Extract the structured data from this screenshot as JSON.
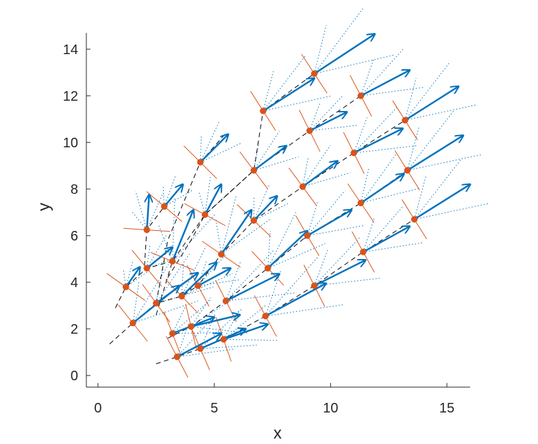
{
  "chart_data": {
    "type": "scatter",
    "title": "",
    "xlabel": "x",
    "ylabel": "y",
    "xlim": [
      -0.5,
      16
    ],
    "ylim": [
      -0.5,
      14.7
    ],
    "xticks": [
      0,
      5,
      10,
      15
    ],
    "yticks": [
      0,
      2,
      4,
      6,
      8,
      10,
      12,
      14
    ],
    "grid": false,
    "colors": {
      "points": "#d95319",
      "arrows": "#0072bd",
      "dotted": "#0072bd",
      "curves": "#000000",
      "crosses": "#d95319",
      "axis": "#262626"
    },
    "points": [
      {
        "x": 3.4,
        "y": 0.8,
        "u": 1.9,
        "v": 1.0
      },
      {
        "x": 4.4,
        "y": 1.15,
        "u": 1.95,
        "v": 0.85
      },
      {
        "x": 5.4,
        "y": 1.55,
        "u": 1.9,
        "v": 0.65
      },
      {
        "x": 3.2,
        "y": 1.8,
        "u": 1.8,
        "v": 0.7
      },
      {
        "x": 4.0,
        "y": 2.1,
        "u": 2.1,
        "v": 0.5
      },
      {
        "x": 1.5,
        "y": 2.25,
        "u": 2.0,
        "v": 1.6
      },
      {
        "x": 2.5,
        "y": 3.1,
        "u": 1.8,
        "v": 1.3
      },
      {
        "x": 3.6,
        "y": 3.4,
        "u": 1.5,
        "v": 1.45
      },
      {
        "x": 4.3,
        "y": 3.85,
        "u": 1.4,
        "v": 0.75
      },
      {
        "x": 5.5,
        "y": 3.2,
        "u": 2.3,
        "v": 1.15
      },
      {
        "x": 7.2,
        "y": 2.55,
        "u": 2.6,
        "v": 1.4
      },
      {
        "x": 9.3,
        "y": 3.85,
        "u": 2.2,
        "v": 1.1
      },
      {
        "x": 11.4,
        "y": 5.3,
        "u": 2.0,
        "v": 1.1
      },
      {
        "x": 13.6,
        "y": 6.7,
        "u": 2.4,
        "v": 1.5
      },
      {
        "x": 1.2,
        "y": 3.8,
        "u": 0.6,
        "v": 0.85
      },
      {
        "x": 2.1,
        "y": 4.6,
        "u": 1.1,
        "v": 0.9
      },
      {
        "x": 3.2,
        "y": 4.9,
        "u": 0.9,
        "v": 2.2
      },
      {
        "x": 5.3,
        "y": 5.2,
        "u": 1.3,
        "v": 1.9
      },
      {
        "x": 7.3,
        "y": 4.6,
        "u": 1.7,
        "v": 1.6
      },
      {
        "x": 9.0,
        "y": 6.0,
        "u": 1.9,
        "v": 1.1
      },
      {
        "x": 11.3,
        "y": 7.4,
        "u": 1.85,
        "v": 1.25
      },
      {
        "x": 13.3,
        "y": 8.8,
        "u": 2.4,
        "v": 1.5
      },
      {
        "x": 2.1,
        "y": 6.25,
        "u": 0.1,
        "v": 1.5
      },
      {
        "x": 2.85,
        "y": 7.25,
        "u": 0.8,
        "v": 0.95
      },
      {
        "x": 4.6,
        "y": 6.9,
        "u": 0.7,
        "v": 1.3
      },
      {
        "x": 6.7,
        "y": 6.65,
        "u": 1.0,
        "v": 1.05
      },
      {
        "x": 8.8,
        "y": 8.1,
        "u": 1.5,
        "v": 1.1
      },
      {
        "x": 11.0,
        "y": 9.55,
        "u": 2.1,
        "v": 1.05
      },
      {
        "x": 13.2,
        "y": 10.95,
        "u": 2.3,
        "v": 1.45
      },
      {
        "x": 4.4,
        "y": 9.15,
        "u": 1.2,
        "v": 1.2
      },
      {
        "x": 6.7,
        "y": 8.8,
        "u": 1.4,
        "v": 1.05
      },
      {
        "x": 9.1,
        "y": 10.5,
        "u": 1.6,
        "v": 0.8
      },
      {
        "x": 11.3,
        "y": 12.0,
        "u": 2.1,
        "v": 1.1
      },
      {
        "x": 7.1,
        "y": 11.35,
        "u": 2.2,
        "v": 1.4
      },
      {
        "x": 9.3,
        "y": 12.95,
        "u": 2.6,
        "v": 1.7
      }
    ],
    "dashed_curves": [
      [
        [
          0.5,
          1.35
        ],
        [
          1.5,
          2.25
        ],
        [
          2.5,
          3.1
        ],
        [
          3.6,
          3.4
        ],
        [
          4.3,
          3.85
        ]
      ],
      [
        [
          0.75,
          2.9
        ],
        [
          1.2,
          3.8
        ],
        [
          2.1,
          4.6
        ],
        [
          3.2,
          4.9
        ]
      ],
      [
        [
          2.0,
          4.7
        ],
        [
          2.1,
          6.25
        ],
        [
          2.85,
          7.25
        ]
      ],
      [
        [
          2.5,
          2.6
        ],
        [
          3.2,
          4.9
        ],
        [
          4.6,
          6.9
        ],
        [
          6.7,
          8.8
        ],
        [
          9.1,
          10.5
        ],
        [
          11.3,
          12.0
        ]
      ],
      [
        [
          2.5,
          3.1
        ],
        [
          3.0,
          5.8
        ],
        [
          4.4,
          9.15
        ],
        [
          5.5,
          10.4
        ]
      ],
      [
        [
          3.0,
          4.2
        ],
        [
          4.0,
          5.8
        ],
        [
          4.6,
          6.9
        ],
        [
          6.7,
          8.8
        ],
        [
          7.1,
          11.35
        ],
        [
          9.3,
          12.95
        ]
      ],
      [
        [
          3.5,
          3.5
        ],
        [
          4.3,
          3.85
        ],
        [
          5.3,
          5.2
        ],
        [
          6.7,
          6.65
        ],
        [
          8.8,
          8.1
        ],
        [
          11.0,
          9.55
        ],
        [
          13.2,
          10.95
        ]
      ],
      [
        [
          3.0,
          1.6
        ],
        [
          4.0,
          2.1
        ],
        [
          5.5,
          3.2
        ],
        [
          7.3,
          4.6
        ],
        [
          9.0,
          6.0
        ],
        [
          11.3,
          7.4
        ],
        [
          13.3,
          8.8
        ]
      ],
      [
        [
          2.5,
          0.5
        ],
        [
          3.4,
          0.8
        ],
        [
          4.4,
          1.15
        ],
        [
          5.4,
          1.55
        ],
        [
          7.2,
          2.55
        ],
        [
          9.3,
          3.85
        ],
        [
          11.4,
          5.3
        ],
        [
          13.6,
          6.7
        ]
      ]
    ]
  }
}
